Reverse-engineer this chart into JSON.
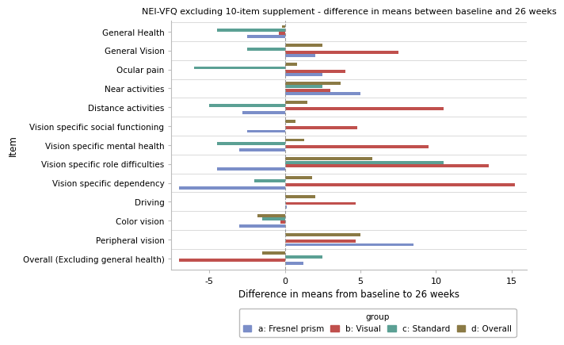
{
  "title": "NEI-VFQ excluding 10-item supplement - difference in means between baseline and 26 weeks",
  "xlabel": "Difference in means from baseline to 26 weeks",
  "ylabel": "Item",
  "categories": [
    "General Health",
    "General Vision",
    "Ocular pain",
    "Near activities",
    "Distance activities",
    "Vision specific social functioning",
    "Vision specific mental health",
    "Vision specific role difficulties",
    "Vision specific dependency",
    "Driving",
    "Color vision",
    "Peripheral vision",
    "Overall (Excluding general health)"
  ],
  "groups": [
    "a: Fresnel prism",
    "b: Visual",
    "c: Standard",
    "d: Overall"
  ],
  "colors": [
    "#7b8ec8",
    "#c0504d",
    "#5ba094",
    "#8b7a45"
  ],
  "values": {
    "a: Fresnel prism": [
      -2.5,
      2.0,
      2.5,
      5.0,
      -2.8,
      -2.5,
      -3.0,
      -4.5,
      -7.0,
      0.1,
      -3.0,
      8.5,
      1.2
    ],
    "b: Visual": [
      -0.4,
      7.5,
      4.0,
      3.0,
      10.5,
      4.8,
      9.5,
      13.5,
      15.2,
      4.7,
      -0.3,
      4.7,
      -7.0
    ],
    "c: Standard": [
      -4.5,
      -2.5,
      -6.0,
      2.5,
      -5.0,
      0.0,
      -4.5,
      10.5,
      -2.0,
      0.0,
      -1.5,
      0.0,
      2.5
    ],
    "d: Overall": [
      -0.2,
      2.5,
      0.8,
      3.7,
      1.5,
      0.7,
      1.3,
      5.8,
      1.8,
      2.0,
      -1.8,
      5.0,
      -1.5
    ]
  },
  "xlim": [
    -7.5,
    16
  ],
  "xticks": [
    -5,
    0,
    5,
    10,
    15
  ],
  "bar_height": 0.18,
  "background_color": "#ffffff",
  "grid_color": "#cccccc"
}
